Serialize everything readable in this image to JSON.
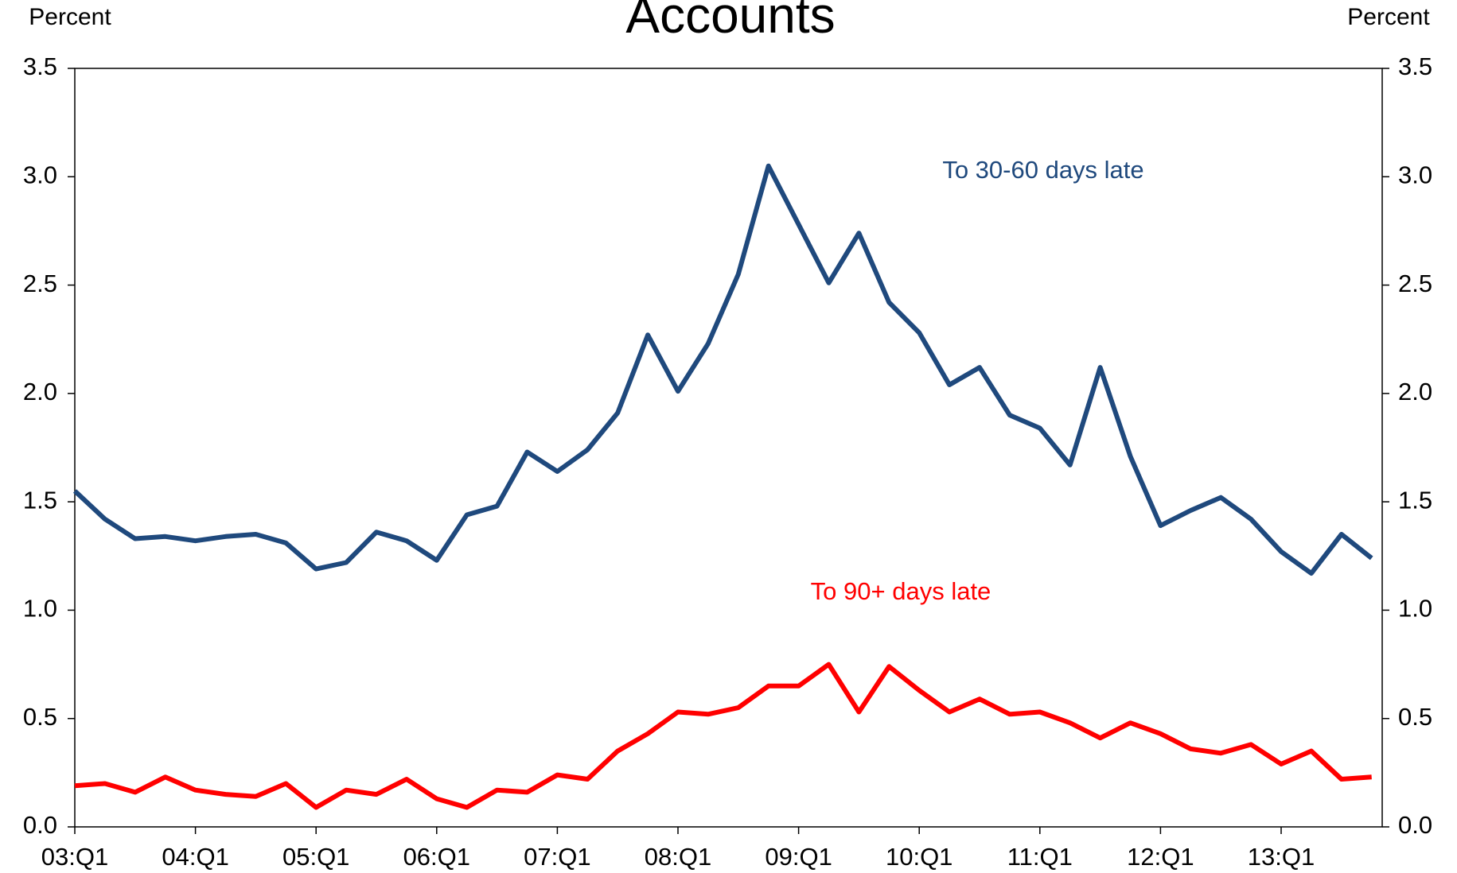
{
  "chart_data": {
    "type": "line",
    "title": "Accounts",
    "ylabel": "Percent",
    "y2label": "Percent",
    "categories": [
      "03:Q1",
      null,
      null,
      null,
      "04:Q1",
      null,
      null,
      null,
      "05:Q1",
      null,
      null,
      null,
      "06:Q1",
      null,
      null,
      null,
      "07:Q1",
      null,
      null,
      null,
      "08:Q1",
      null,
      null,
      null,
      "09:Q1",
      null,
      null,
      null,
      "10:Q1",
      null,
      null,
      null,
      "11:Q1",
      null,
      null,
      null,
      "12:Q1",
      null,
      null,
      null,
      "13:Q1",
      null,
      null,
      null
    ],
    "series": [
      {
        "name": "To 30-60 days late",
        "color": "#1f497d",
        "values": [
          1.55,
          1.42,
          1.33,
          1.34,
          1.32,
          1.34,
          1.35,
          1.31,
          1.19,
          1.22,
          1.36,
          1.32,
          1.23,
          1.44,
          1.48,
          1.73,
          1.64,
          1.74,
          1.91,
          2.27,
          2.01,
          2.23,
          2.55,
          3.05,
          2.78,
          2.51,
          2.74,
          2.42,
          2.28,
          2.04,
          2.12,
          1.9,
          1.84,
          1.67,
          2.12,
          1.71,
          1.39,
          1.46,
          1.52,
          1.42,
          1.27,
          1.17,
          1.35,
          1.24
        ]
      },
      {
        "name": "To 90+ days late",
        "color": "#ff0000",
        "values": [
          0.19,
          0.2,
          0.16,
          0.23,
          0.17,
          0.15,
          0.14,
          0.2,
          0.09,
          0.17,
          0.15,
          0.22,
          0.13,
          0.09,
          0.17,
          0.16,
          0.24,
          0.22,
          0.35,
          0.43,
          0.53,
          0.52,
          0.55,
          0.65,
          0.65,
          0.75,
          0.53,
          0.74,
          0.63,
          0.53,
          0.59,
          0.52,
          0.53,
          0.48,
          0.41,
          0.48,
          0.43,
          0.36,
          0.34,
          0.38,
          0.29,
          0.35,
          0.22,
          0.23
        ]
      }
    ],
    "ylim": [
      0,
      3.5
    ],
    "yticks": [
      {
        "value": 0,
        "label": "0.0"
      },
      0.5,
      {
        "value": 1,
        "label": "1.0"
      },
      1.5,
      {
        "value": 2,
        "label": "2.0"
      },
      2.5,
      {
        "value": 3,
        "label": "3.0"
      },
      3.5
    ],
    "y2lim": [
      0,
      3.5
    ],
    "y2ticks": [
      {
        "value": 0,
        "label": "0.0"
      },
      0.5,
      {
        "value": 1,
        "label": "1.0"
      },
      1.5,
      {
        "value": 2,
        "label": "2.0"
      },
      2.5,
      {
        "value": 3,
        "label": "3.0"
      },
      3.5
    ],
    "grid": false
  }
}
